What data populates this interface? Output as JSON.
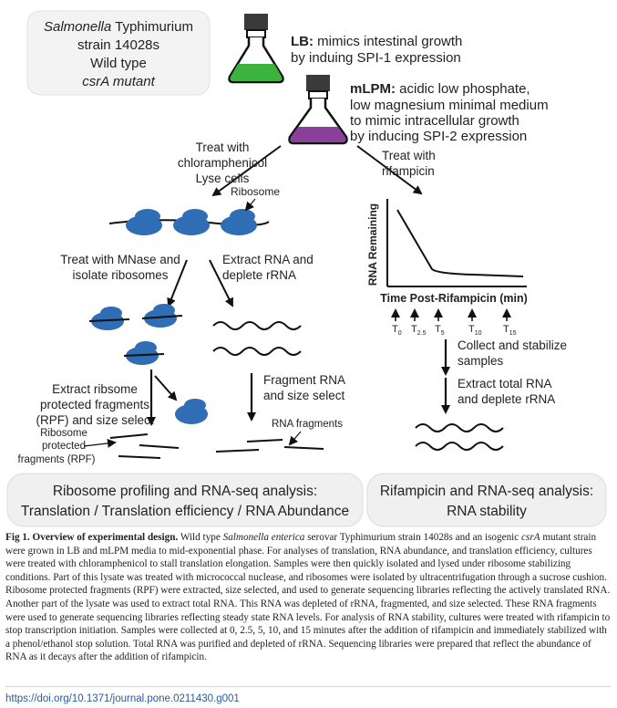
{
  "strain_box": {
    "line1_italic": "Salmonella",
    "line1_rest": " Typhimurium",
    "line2": "strain 14028s",
    "line3": "Wild type",
    "line4": "csrA mutant"
  },
  "media": {
    "lb_bold": "LB:",
    "lb_line1": " mimics intestinal growth",
    "lb_line2": "by induing SPI-1 expression",
    "mlpm_bold": "mLPM:",
    "mlpm_line1": " acidic low phosphate,",
    "mlpm_line2": "low magnesium minimal medium",
    "mlpm_line3": "to mimic intracellular growth",
    "mlpm_line4": "by inducing SPI-2 expression",
    "lb_color": "#3cb43c",
    "mlpm_color": "#8a3f9a"
  },
  "left_branch": {
    "treat_l1": "Treat with",
    "treat_l2": "chloramphenicol",
    "treat_l3": "Lyse cells",
    "ribosome_label": "Ribosome",
    "mnase_l1": "Treat with MNase and",
    "mnase_l2": "isolate ribosomes",
    "extract_l1": "Extract RNA and",
    "extract_l2": "deplete rRNA",
    "rpf_l1": "Extract ribsome",
    "rpf_l2": "protected fragments",
    "rpf_l3": "(RPF) and size select",
    "rpf_label_l1": "Ribosome",
    "rpf_label_l2": "protected",
    "rpf_label_l3": "fragments (RPF)",
    "frag_l1": "Fragment RNA",
    "frag_l2": "and size select",
    "rna_frag_label": "RNA fragments",
    "ribosome_color": "#2f6db5"
  },
  "right_branch": {
    "treat_l1": "Treat with",
    "treat_l2": "rifampicin",
    "y_label": "RNA Remaining",
    "x_label": "Time Post-Rifampicin (min)",
    "timepoints": [
      "0",
      "2.5",
      "5",
      "10",
      "15"
    ],
    "collect_l1": "Collect and stabilize",
    "collect_l2": "samples",
    "extract_l1": "Extract total RNA",
    "extract_l2": "and deplete rRNA"
  },
  "bottom_boxes": {
    "left_l1": "Ribosome profiling and RNA-seq analysis:",
    "left_l2": "Translation / Translation efficiency / RNA Abundance",
    "right_l1": "Rifampicin and RNA-seq analysis:",
    "right_l2": "RNA stability"
  },
  "caption": {
    "lead": "Fig 1. Overview of experimental design.",
    "s1a": " Wild type ",
    "s1_italic": "Salmonella enterica",
    "s1b": " serovar Typhimurium strain 14028s and an isogenic ",
    "s1_italic2": "csrA",
    "s1c": " mutant strain were grown in LB and mLPM media to mid-exponential phase. For analyses of translation, RNA abundance, and translation efficiency, cultures were treated with chloramphenicol to stall translation elongation. Samples were then quickly isolated and lysed under ribosome stabilizing conditions. Part of this lysate was treated with micrococcal nuclease, and ribosomes were isolated by ultracentrifugation through a sucrose cushion. Ribosome protected fragments (RPF) were extracted, size selected, and used to generate sequencing libraries reflecting the actively translated RNA. Another part of the lysate was used to extract total RNA. This RNA was depleted of rRNA, fragmented, and size selected. These RNA fragments were used to generate sequencing libraries reflecting steady state RNA levels. For analysis of RNA stability, cultures were treated with rifampicin to stop transcription initiation. Samples were collected at 0, 2.5, 5, 10, and 15 minutes after the addition of rifampicin and immediately stabilized with a phenol/ethanol stop solution. Total RNA was purified and depleted of rRNA. Sequencing libraries were prepared that reflect the abundance of RNA as it decays after the addition of rifampicin.",
    "doi": "https://doi.org/10.1371/journal.pone.0211430.g001"
  }
}
